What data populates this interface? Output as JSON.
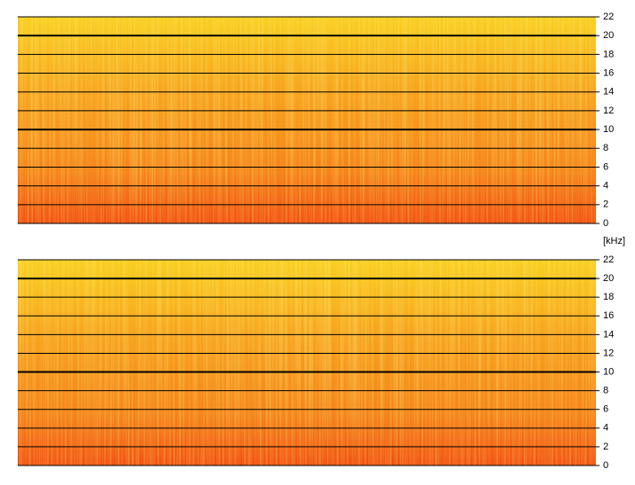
{
  "chart_data": [
    {
      "type": "spectrogram",
      "ylim": [
        0,
        22
      ],
      "yticks": [
        0,
        2,
        4,
        6,
        8,
        10,
        12,
        14,
        16,
        18,
        20,
        22
      ]
    },
    {
      "type": "spectrogram",
      "ylabel": "[kHz]",
      "ylim": [
        0,
        22
      ],
      "yticks": [
        0,
        2,
        4,
        6,
        8,
        10,
        12,
        14,
        16,
        18,
        20,
        22
      ]
    }
  ]
}
